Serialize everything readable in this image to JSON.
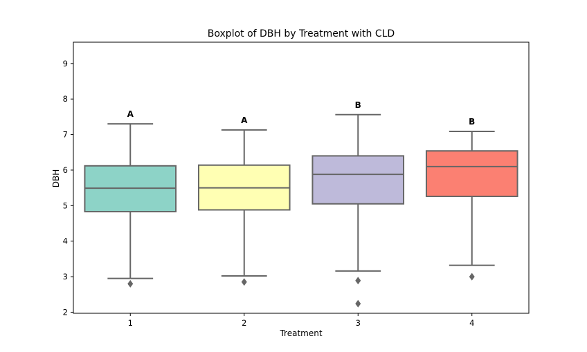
{
  "chart_data": {
    "type": "box",
    "title": "Boxplot of DBH by Treatment with CLD",
    "xlabel": "Treatment",
    "ylabel": "DBH",
    "ylim": [
      1.97,
      9.6
    ],
    "yticks": [
      2,
      3,
      4,
      5,
      6,
      7,
      8,
      9
    ],
    "grid": false,
    "categories": [
      "1",
      "2",
      "3",
      "4"
    ],
    "boxes": [
      {
        "category": "1",
        "color": "#8dd3c7",
        "whisker_low": 2.95,
        "q1": 4.83,
        "median": 5.49,
        "q3": 6.12,
        "whisker_high": 7.3,
        "outliers": [
          2.8
        ],
        "cld": "A"
      },
      {
        "category": "2",
        "color": "#ffffb3",
        "whisker_low": 3.02,
        "q1": 4.88,
        "median": 5.5,
        "q3": 6.14,
        "whisker_high": 7.13,
        "outliers": [
          2.85
        ],
        "cld": "A"
      },
      {
        "category": "3",
        "color": "#bebada",
        "whisker_low": 3.16,
        "q1": 5.05,
        "median": 5.88,
        "q3": 6.4,
        "whisker_high": 7.56,
        "outliers": [
          2.89,
          2.24
        ],
        "cld": "B"
      },
      {
        "category": "4",
        "color": "#fb8072",
        "whisker_low": 3.32,
        "q1": 5.26,
        "median": 6.1,
        "q3": 6.54,
        "whisker_high": 7.09,
        "outliers": [
          3.0
        ],
        "cld": "B"
      }
    ],
    "line_color": "#666666"
  }
}
